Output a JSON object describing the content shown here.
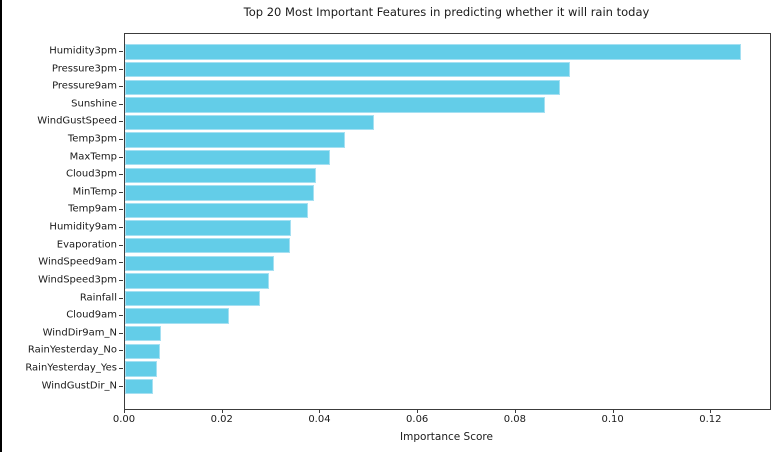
{
  "figure": {
    "background": "#ffffff",
    "frame_color": "#000000"
  },
  "chart_data": {
    "type": "bar",
    "orientation": "horizontal",
    "title": "Top 20 Most Important Features in predicting whether it will rain today",
    "xlabel": "Importance Score",
    "ylabel": "",
    "categories": [
      "Humidity3pm",
      "Pressure3pm",
      "Pressure9am",
      "Sunshine",
      "WindGustSpeed",
      "Temp3pm",
      "MaxTemp",
      "Cloud3pm",
      "MinTemp",
      "Temp9am",
      "Humidity9am",
      "Evaporation",
      "WindSpeed9am",
      "WindSpeed3pm",
      "Rainfall",
      "Cloud9am",
      "WindDir9am_N",
      "RainYesterday_No",
      "RainYesterday_Yes",
      "WindGustDir_N"
    ],
    "values": [
      0.126,
      0.091,
      0.089,
      0.086,
      0.051,
      0.045,
      0.042,
      0.039,
      0.0387,
      0.0375,
      0.034,
      0.0338,
      0.0305,
      0.0295,
      0.0277,
      0.0213,
      0.0074,
      0.0072,
      0.0066,
      0.0057
    ],
    "xlim": [
      0,
      0.132
    ],
    "xticks": [
      0.0,
      0.02,
      0.04,
      0.06,
      0.08,
      0.1,
      0.12
    ],
    "xtick_decimals": 2,
    "grid": false,
    "legend": null,
    "colors": {
      "bar_fill": "#63cde8",
      "bar_edge": "#a5e0f2",
      "spine": "#3c3c3c",
      "text": "#1a1a1a"
    }
  }
}
